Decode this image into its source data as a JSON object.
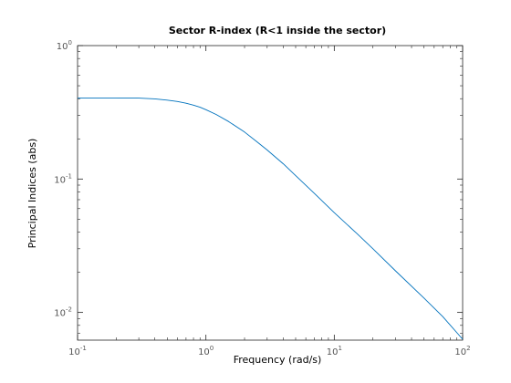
{
  "chart_data": {
    "type": "line",
    "title": "Sector R-index (R<1 inside the sector)",
    "xlabel": "Frequency (rad/s)",
    "ylabel": "Principal Indices (abs)",
    "xscale": "log",
    "yscale": "log",
    "xlim": [
      0.1,
      100
    ],
    "ylim": [
      0.0062,
      1
    ],
    "grid": false,
    "x_ticks": [
      {
        "base": "10",
        "exp": "-1",
        "value": 0.1
      },
      {
        "base": "10",
        "exp": "0",
        "value": 1
      },
      {
        "base": "10",
        "exp": "1",
        "value": 10
      },
      {
        "base": "10",
        "exp": "2",
        "value": 100
      }
    ],
    "y_ticks": [
      {
        "base": "10",
        "exp": "-2",
        "value": 0.01
      },
      {
        "base": "10",
        "exp": "-1",
        "value": 0.1
      },
      {
        "base": "10",
        "exp": "0",
        "value": 1
      }
    ],
    "series": [
      {
        "color": "#0072bd",
        "x": [
          0.1,
          0.2,
          0.3,
          0.4,
          0.5,
          0.6,
          0.7,
          0.8,
          0.9,
          1.0,
          1.2,
          1.5,
          2,
          2.5,
          3,
          4,
          5,
          7,
          10,
          15,
          20,
          30,
          50,
          70,
          100
        ],
        "y": [
          0.405,
          0.405,
          0.404,
          0.399,
          0.39,
          0.381,
          0.37,
          0.358,
          0.345,
          0.331,
          0.305,
          0.27,
          0.225,
          0.19,
          0.165,
          0.13,
          0.106,
          0.078,
          0.056,
          0.039,
          0.03,
          0.0205,
          0.0128,
          0.0093,
          0.0063
        ]
      }
    ]
  }
}
